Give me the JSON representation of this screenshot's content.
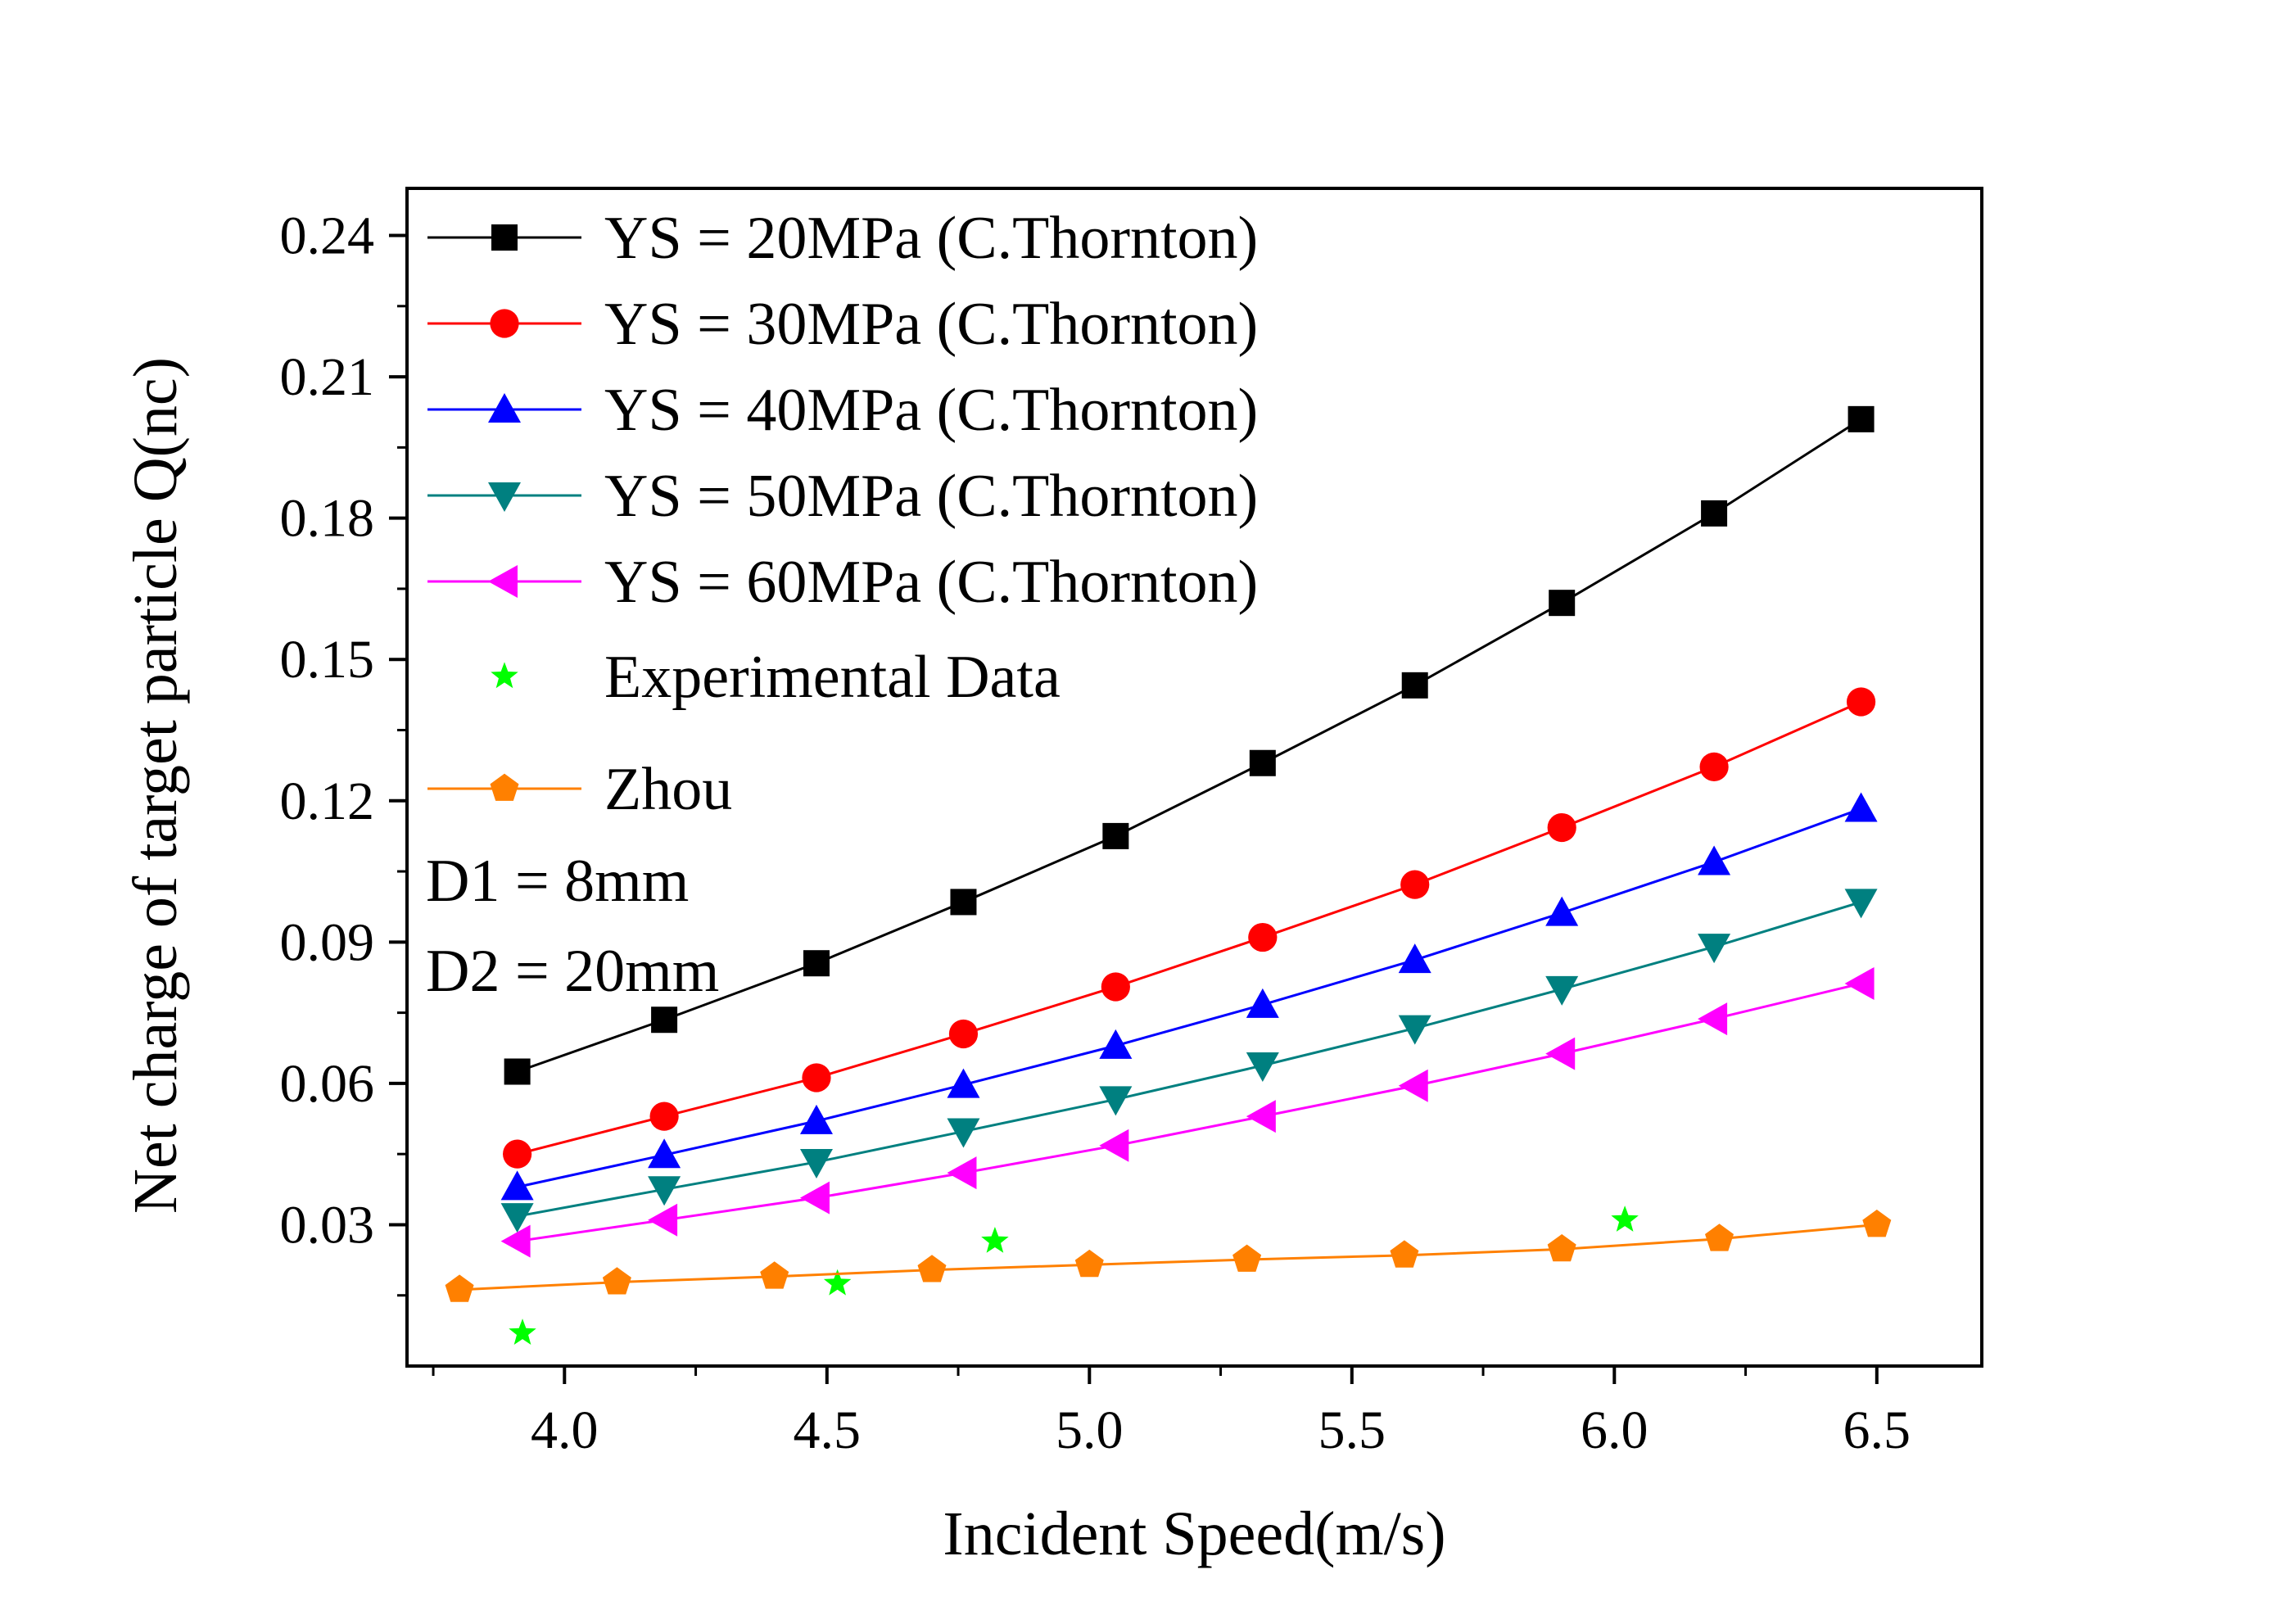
{
  "chart_data": {
    "type": "line",
    "title": "",
    "xlabel": "Incident Speed(m/s)",
    "ylabel": "Net charge of target particle Q(nc)",
    "xlim": [
      3.7,
      6.7
    ],
    "ylim": [
      0.0,
      0.25
    ],
    "x_ticks": [
      {
        "value": 4.0,
        "label": "4.0"
      },
      {
        "value": 4.5,
        "label": "4.5"
      },
      {
        "value": 5.0,
        "label": "5.0"
      },
      {
        "value": 5.5,
        "label": "5.5"
      },
      {
        "value": 6.0,
        "label": "6.0"
      },
      {
        "value": 6.5,
        "label": "6.5"
      }
    ],
    "y_ticks": [
      {
        "value": 0.03,
        "label": "0.03"
      },
      {
        "value": 0.06,
        "label": "0.06"
      },
      {
        "value": 0.09,
        "label": "0.09"
      },
      {
        "value": 0.12,
        "label": "0.12"
      },
      {
        "value": 0.15,
        "label": "0.15"
      },
      {
        "value": 0.18,
        "label": "0.18"
      },
      {
        "value": 0.21,
        "label": "0.21"
      },
      {
        "value": 0.24,
        "label": "0.24"
      }
    ],
    "grid": false,
    "legend_position": "top-left",
    "series": [
      {
        "name": "YS = 20MPa (C.Thornton)",
        "color": "#000000",
        "marker": "square",
        "line": true,
        "x": [
          3.91,
          4.19,
          4.48,
          4.76,
          5.05,
          5.33,
          5.62,
          5.9,
          6.19,
          6.47
        ],
        "y": [
          0.0625,
          0.0735,
          0.0855,
          0.0985,
          0.1125,
          0.128,
          0.1445,
          0.162,
          0.181,
          0.201
        ]
      },
      {
        "name": "YS = 30MPa (C.Thornton)",
        "color": "#ff0000",
        "marker": "circle",
        "line": true,
        "x": [
          3.91,
          4.19,
          4.48,
          4.76,
          5.05,
          5.33,
          5.62,
          5.9,
          6.19,
          6.47
        ],
        "y": [
          0.045,
          0.053,
          0.0612,
          0.0705,
          0.0805,
          0.091,
          0.1022,
          0.1143,
          0.1272,
          0.141
        ]
      },
      {
        "name": "YS = 40MPa (C.Thornton)",
        "color": "#0000ff",
        "marker": "triangle-up",
        "line": true,
        "x": [
          3.91,
          4.19,
          4.48,
          4.76,
          5.05,
          5.33,
          5.62,
          5.9,
          6.19,
          6.47
        ],
        "y": [
          0.038,
          0.0448,
          0.052,
          0.0597,
          0.068,
          0.0767,
          0.0862,
          0.0962,
          0.107,
          0.1183
        ]
      },
      {
        "name": "YS = 50MPa (C.Thornton)",
        "color": "#008080",
        "marker": "triangle-down",
        "line": true,
        "x": [
          3.91,
          4.19,
          4.48,
          4.76,
          5.05,
          5.33,
          5.62,
          5.9,
          6.19,
          6.47
        ],
        "y": [
          0.0318,
          0.0375,
          0.0433,
          0.0498,
          0.0566,
          0.0638,
          0.0717,
          0.08,
          0.089,
          0.0985
        ]
      },
      {
        "name": "YS = 60MPa (C.Thornton)",
        "color": "#ff00ff",
        "marker": "triangle-left",
        "line": true,
        "x": [
          3.91,
          4.19,
          4.48,
          4.76,
          5.05,
          5.33,
          5.62,
          5.9,
          6.19,
          6.47
        ],
        "y": [
          0.0265,
          0.031,
          0.0357,
          0.041,
          0.0468,
          0.053,
          0.0595,
          0.0663,
          0.0737,
          0.0812
        ]
      },
      {
        "name": "Experimental Data",
        "color": "#00ff00",
        "marker": "star",
        "line": false,
        "x": [
          3.92,
          4.52,
          4.82,
          6.02
        ],
        "y": [
          0.007,
          0.0175,
          0.0265,
          0.031
        ]
      },
      {
        "name": "Zhou",
        "color": "#ff8000",
        "marker": "pentagon",
        "line": true,
        "x": [
          3.8,
          4.1,
          4.4,
          4.7,
          5.0,
          5.3,
          5.6,
          5.9,
          6.2,
          6.5
        ],
        "y": [
          0.0162,
          0.0178,
          0.019,
          0.0204,
          0.0215,
          0.0226,
          0.0235,
          0.0248,
          0.027,
          0.03
        ]
      }
    ],
    "annotations": [
      "D1 = 8mm",
      "D2 = 20mm"
    ]
  }
}
